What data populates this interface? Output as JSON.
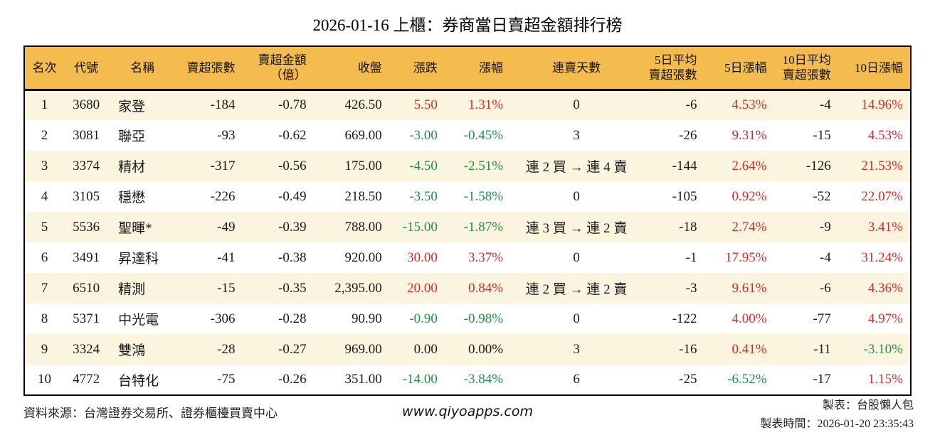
{
  "title": "2026-01-16 上櫃：券商當日賣超金額排行榜",
  "colors": {
    "header_bg": "#f4bc4e",
    "row_alt_bg": "#fbf4df",
    "up_red": "#d22c2c",
    "down_green": "#1d9348"
  },
  "table": {
    "headers": [
      "名次",
      "代號",
      "名稱",
      "賣超張數",
      "賣超金額\n（億）",
      "收盤",
      "漲跌",
      "漲幅",
      "連賣天數",
      "5日平均\n賣超張數",
      "5日漲幅",
      "10日平均\n賣超張數",
      "10日漲幅"
    ],
    "rows": [
      {
        "cells": [
          "1",
          "3680",
          "家登",
          "-184",
          "-0.78",
          "426.50",
          "5.50",
          "1.31%",
          "0",
          "-6",
          "4.53%",
          "-4",
          "14.96%"
        ],
        "colors": [
          null,
          null,
          null,
          null,
          null,
          null,
          "red",
          "red",
          null,
          null,
          "red",
          null,
          "red"
        ]
      },
      {
        "cells": [
          "2",
          "3081",
          "聯亞",
          "-93",
          "-0.62",
          "669.00",
          "-3.00",
          "-0.45%",
          "3",
          "-26",
          "9.31%",
          "-15",
          "4.53%"
        ],
        "colors": [
          null,
          null,
          null,
          null,
          null,
          null,
          "green",
          "green",
          null,
          null,
          "red",
          null,
          "red"
        ]
      },
      {
        "cells": [
          "3",
          "3374",
          "精材",
          "-317",
          "-0.56",
          "175.00",
          "-4.50",
          "-2.51%",
          "連 2 買 → 連 4 賣",
          "-144",
          "2.64%",
          "-126",
          "21.53%"
        ],
        "colors": [
          null,
          null,
          null,
          null,
          null,
          null,
          "green",
          "green",
          null,
          null,
          "red",
          null,
          "red"
        ]
      },
      {
        "cells": [
          "4",
          "3105",
          "穩懋",
          "-226",
          "-0.49",
          "218.50",
          "-3.50",
          "-1.58%",
          "0",
          "-105",
          "0.92%",
          "-52",
          "22.07%"
        ],
        "colors": [
          null,
          null,
          null,
          null,
          null,
          null,
          "green",
          "green",
          null,
          null,
          "red",
          null,
          "red"
        ]
      },
      {
        "cells": [
          "5",
          "5536",
          "聖暉*",
          "-49",
          "-0.39",
          "788.00",
          "-15.00",
          "-1.87%",
          "連 3 買 → 連 2 賣",
          "-18",
          "2.74%",
          "-9",
          "3.41%"
        ],
        "colors": [
          null,
          null,
          null,
          null,
          null,
          null,
          "green",
          "green",
          null,
          null,
          "red",
          null,
          "red"
        ]
      },
      {
        "cells": [
          "6",
          "3491",
          "昇達科",
          "-41",
          "-0.38",
          "920.00",
          "30.00",
          "3.37%",
          "0",
          "-1",
          "17.95%",
          "-4",
          "31.24%"
        ],
        "colors": [
          null,
          null,
          null,
          null,
          null,
          null,
          "red",
          "red",
          null,
          null,
          "red",
          null,
          "red"
        ]
      },
      {
        "cells": [
          "7",
          "6510",
          "精測",
          "-15",
          "-0.35",
          "2,395.00",
          "20.00",
          "0.84%",
          "連 2 買 → 連 2 賣",
          "-3",
          "9.61%",
          "-6",
          "4.36%"
        ],
        "colors": [
          null,
          null,
          null,
          null,
          null,
          null,
          "red",
          "red",
          null,
          null,
          "red",
          null,
          "red"
        ]
      },
      {
        "cells": [
          "8",
          "5371",
          "中光電",
          "-306",
          "-0.28",
          "90.90",
          "-0.90",
          "-0.98%",
          "0",
          "-122",
          "4.00%",
          "-77",
          "4.97%"
        ],
        "colors": [
          null,
          null,
          null,
          null,
          null,
          null,
          "green",
          "green",
          null,
          null,
          "red",
          null,
          "red"
        ]
      },
      {
        "cells": [
          "9",
          "3324",
          "雙鴻",
          "-28",
          "-0.27",
          "969.00",
          "0.00",
          "0.00%",
          "3",
          "-16",
          "0.41%",
          "-11",
          "-3.10%"
        ],
        "colors": [
          null,
          null,
          null,
          null,
          null,
          null,
          "flat",
          "flat",
          null,
          null,
          "red",
          null,
          "green"
        ]
      },
      {
        "cells": [
          "10",
          "4772",
          "台特化",
          "-75",
          "-0.26",
          "351.00",
          "-14.00",
          "-3.84%",
          "6",
          "-25",
          "-6.52%",
          "-17",
          "1.15%"
        ],
        "colors": [
          null,
          null,
          null,
          null,
          null,
          null,
          "green",
          "green",
          null,
          null,
          "green",
          null,
          "red"
        ]
      }
    ]
  },
  "footer": {
    "source": "資料來源：台灣證券交易所、證券櫃檯買賣中心",
    "website": "www.qiyoapps.com",
    "maker": "製表：台股懶人包",
    "timestamp": "製表時間：2026-01-20 23:35:43"
  }
}
